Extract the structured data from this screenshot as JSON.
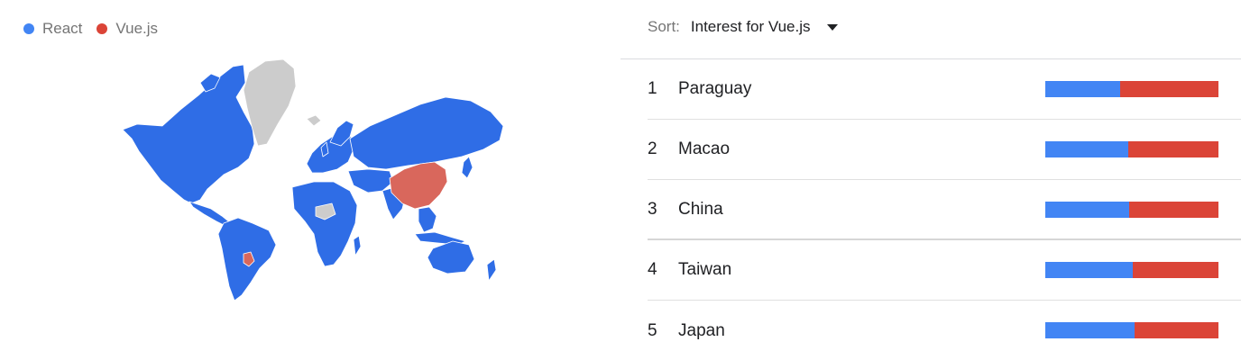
{
  "legend": {
    "items": [
      {
        "label": "React",
        "color": "#4285f4"
      },
      {
        "label": "Vue.js",
        "color": "#db4437"
      }
    ]
  },
  "sort": {
    "label": "Sort:",
    "value": "Interest for Vue.js"
  },
  "map": {
    "colors": {
      "react": "#2f6de6",
      "vue": "#d9675c",
      "no_data": "#cccccc"
    },
    "vue_regions": [
      "China",
      "Paraguay"
    ],
    "no_data_regions": [
      "Greenland"
    ]
  },
  "rows": [
    {
      "rank": "1",
      "name": "Paraguay",
      "react_share": 0.43
    },
    {
      "rank": "2",
      "name": "Macao",
      "react_share": 0.48
    },
    {
      "rank": "3",
      "name": "China",
      "react_share": 0.485
    },
    {
      "rank": "4",
      "name": "Taiwan",
      "react_share": 0.505
    },
    {
      "rank": "5",
      "name": "Japan",
      "react_share": 0.515
    }
  ]
}
